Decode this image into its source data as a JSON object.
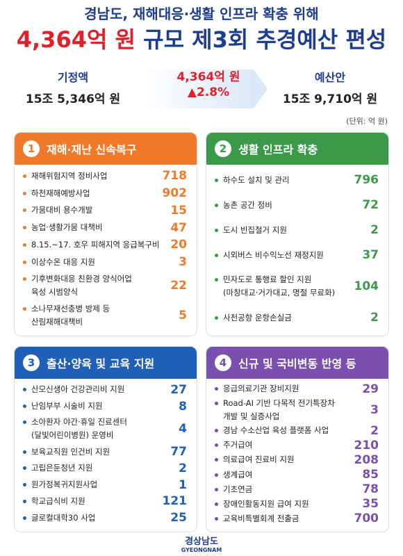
{
  "header": {
    "subtitle": "경남도, 재해대응·생활 인프라 확충 위해",
    "title_amount": "4,364억 원",
    "title_rest": "규모 제3회 추경예산 편성"
  },
  "summary": {
    "before": {
      "label": "기정액",
      "value": "15조 5,346억 원"
    },
    "change": {
      "amount": "4,364억 원",
      "rate": "▲2.8%"
    },
    "after": {
      "label": "예산안",
      "value": "15조 9,710억 원"
    }
  },
  "unit": "(단위: 억 원)",
  "sections": [
    {
      "number": "1",
      "title": "재해·재난 신속복구",
      "items": [
        {
          "label": "재해위험지역 정비사업",
          "value": 718
        },
        {
          "label": "하천재해예방사업",
          "value": 902
        },
        {
          "label": "가뭄대비 용수개발",
          "value": 15
        },
        {
          "label": "농업·생활가뭄 대책비",
          "value": 47
        },
        {
          "label": "8.15.~17. 호우 피해지역 응급복구비",
          "value": 20
        },
        {
          "label": "이상수온 대응 지원",
          "value": 3
        },
        {
          "label": "기후변화대응 친환경 양식어업\n육성 시범양식",
          "value": 22
        },
        {
          "label": "소나무재선충병 방제 등\n산림재해대책비",
          "value": 5
        }
      ]
    },
    {
      "number": "2",
      "title": "생활 인프라 확충",
      "items": [
        {
          "label": "하수도 설치 및 관리",
          "value": 796
        },
        {
          "label": "농촌 공간 정비",
          "value": 72
        },
        {
          "label": "도시 빈집철거 지원",
          "value": 2
        },
        {
          "label": "시외버스 비수익노선 재정지원",
          "value": 37
        },
        {
          "label": "민자도로 통행료 할인 지원\n(마창대교·거가대교, 명절 무료화)",
          "value": 104
        },
        {
          "label": "사천공항 운항손실금",
          "value": 2
        }
      ]
    },
    {
      "number": "3",
      "title": "출산·양육 및 교육 지원",
      "items": [
        {
          "label": "산모신생아 건강관리비 지원",
          "value": 27
        },
        {
          "label": "난임부부 시술비 지원",
          "value": 8
        },
        {
          "label": "소아환자 야간·휴일 진료센터\n(달빛어린이병원) 운영비",
          "value": 4
        },
        {
          "label": "보육교직원 인건비 지원",
          "value": 77
        },
        {
          "label": "고립은둔청년 지원",
          "value": 2
        },
        {
          "label": "원가정복귀지원사업",
          "value": 1
        },
        {
          "label": "학교급식비 지원",
          "value": 121
        },
        {
          "label": "글로컬대학30 사업",
          "value": 25
        }
      ]
    },
    {
      "number": "4",
      "title": "신규 및 국비변동 반영 등",
      "items": [
        {
          "label": "응급의료기관 장비지원",
          "value": 29
        },
        {
          "label": "Road-AI 기반 다목적 전기특장차\n개발 및 실증사업",
          "value": 3
        },
        {
          "label": "경남 수소산업 육성 플랫폼 사업",
          "value": 2
        },
        {
          "label": "주거급여",
          "value": 210
        },
        {
          "label": "의료급여 진료비 지원",
          "value": 208
        },
        {
          "label": "생계급여",
          "value": 85
        },
        {
          "label": "기초연금",
          "value": 78
        },
        {
          "label": "장애인활동지원 급여 지원",
          "value": 35
        },
        {
          "label": "교육비특별회계 전출금",
          "value": 700
        }
      ]
    }
  ],
  "footer": {
    "name": "경상남도",
    "name_en": "GYEONGNAM"
  }
}
